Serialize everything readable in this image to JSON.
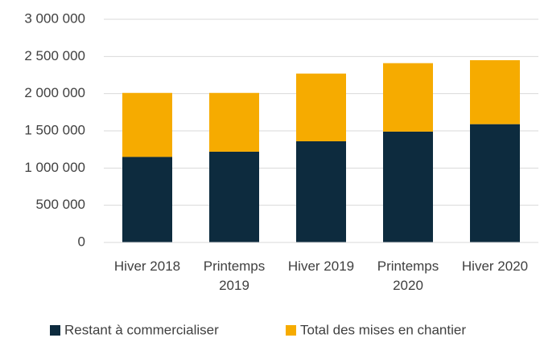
{
  "chart_data": {
    "type": "stacked_bar",
    "categories": [
      "Hiver 2018",
      "Printemps 2019",
      "Hiver 2019",
      "Printemps 2020",
      "Hiver 2020"
    ],
    "series": [
      {
        "name": "Restant à commercialiser",
        "color": "#0d2b3e",
        "values": [
          1150000,
          1220000,
          1360000,
          1490000,
          1590000
        ]
      },
      {
        "name": "Total des mises en chantier",
        "color": "#f6ab00",
        "values": [
          860000,
          790000,
          910000,
          920000,
          860000
        ]
      }
    ],
    "ylim": [
      0,
      3000000
    ],
    "yticks": [
      0,
      {
        "value": 500000,
        "label": "500 000"
      },
      {
        "value": 1000000,
        "label": "1 000 000"
      },
      {
        "value": 1500000,
        "label": "1 500 000"
      },
      {
        "value": 2000000,
        "label": "2 000 000"
      },
      {
        "value": 2500000,
        "label": "2 500 000"
      },
      {
        "value": 3000000,
        "label": "3 000 000"
      }
    ],
    "grid": true,
    "legend": "bottom"
  }
}
